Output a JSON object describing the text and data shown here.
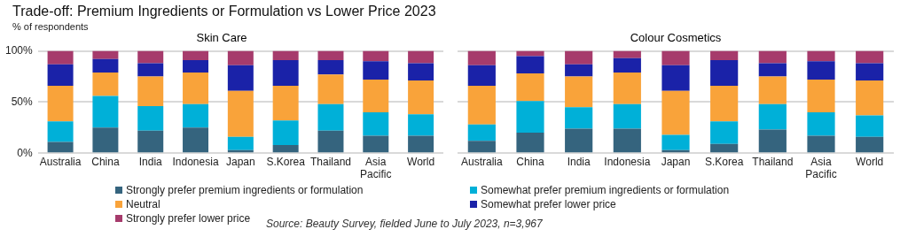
{
  "chart_data": [
    {
      "type": "bar",
      "title": "Skin Care",
      "ylabel": "% of respondents",
      "stacked": true,
      "grid": "y",
      "legend": "bottom",
      "ylim": [
        0,
        100
      ],
      "yticks": [
        {
          "value": 0,
          "label": "0%"
        },
        {
          "value": 50,
          "label": "50%"
        },
        {
          "value": 100,
          "label": "100%"
        }
      ],
      "categories": [
        "Australia",
        "China",
        "India",
        "Indonesia",
        "Japan",
        "S.Korea",
        "Thailand",
        "Asia Pacific",
        "World"
      ],
      "series": [
        {
          "name": "Strongly prefer premium ingredients or formulation",
          "color": "#35647e",
          "values": [
            11,
            25,
            22,
            25,
            3,
            8,
            22,
            17,
            17
          ]
        },
        {
          "name": "Somewhat prefer premium ingredients or formulation",
          "color": "#00b0d8",
          "values": [
            20,
            31,
            24,
            23,
            13,
            24,
            26,
            23,
            21
          ]
        },
        {
          "name": "Neutral",
          "color": "#f9a33a",
          "values": [
            35,
            23,
            29,
            31,
            45,
            34,
            29,
            32,
            33
          ]
        },
        {
          "name": "Somewhat prefer lower price",
          "color": "#1a22a8",
          "values": [
            21,
            13,
            13,
            12,
            25,
            25,
            14,
            18,
            17
          ]
        },
        {
          "name": "Strongly prefer lower price",
          "color": "#a63b6c",
          "values": [
            13,
            8,
            12,
            9,
            14,
            9,
            9,
            10,
            12
          ]
        }
      ],
      "annotations": [
        "Trade-off: Premium Ingredients or Formulation vs Lower Price 2023",
        "Source: Beauty Survey, fielded June to July 2023, n=3,967"
      ]
    },
    {
      "type": "bar",
      "title": "Colour Cosmetics",
      "stacked": true,
      "grid": "y",
      "tick_labels": "x",
      "ylim": [
        0,
        100
      ],
      "yticks": [
        {
          "value": 0,
          "label": null
        },
        {
          "value": 50,
          "label": null
        },
        {
          "value": 100,
          "label": null
        }
      ],
      "categories": [
        "Australia",
        "China",
        "India",
        "Indonesia",
        "Japan",
        "S.Korea",
        "Thailand",
        "Asia Pacific",
        "World"
      ],
      "series": [
        {
          "color": "#35647e",
          "values": [
            12,
            20,
            24,
            24,
            3,
            9,
            23,
            17,
            16
          ]
        },
        {
          "color": "#00b0d8",
          "values": [
            16,
            31,
            21,
            24,
            15,
            22,
            25,
            23,
            21
          ]
        },
        {
          "color": "#f9a33a",
          "values": [
            38,
            27,
            30,
            31,
            43,
            35,
            27,
            32,
            34
          ]
        },
        {
          "color": "#1a22a8",
          "values": [
            20,
            17,
            12,
            14,
            25,
            25,
            13,
            18,
            17
          ]
        },
        {
          "color": "#a63b6c",
          "values": [
            14,
            5,
            13,
            7,
            14,
            9,
            12,
            10,
            12
          ]
        }
      ]
    }
  ]
}
